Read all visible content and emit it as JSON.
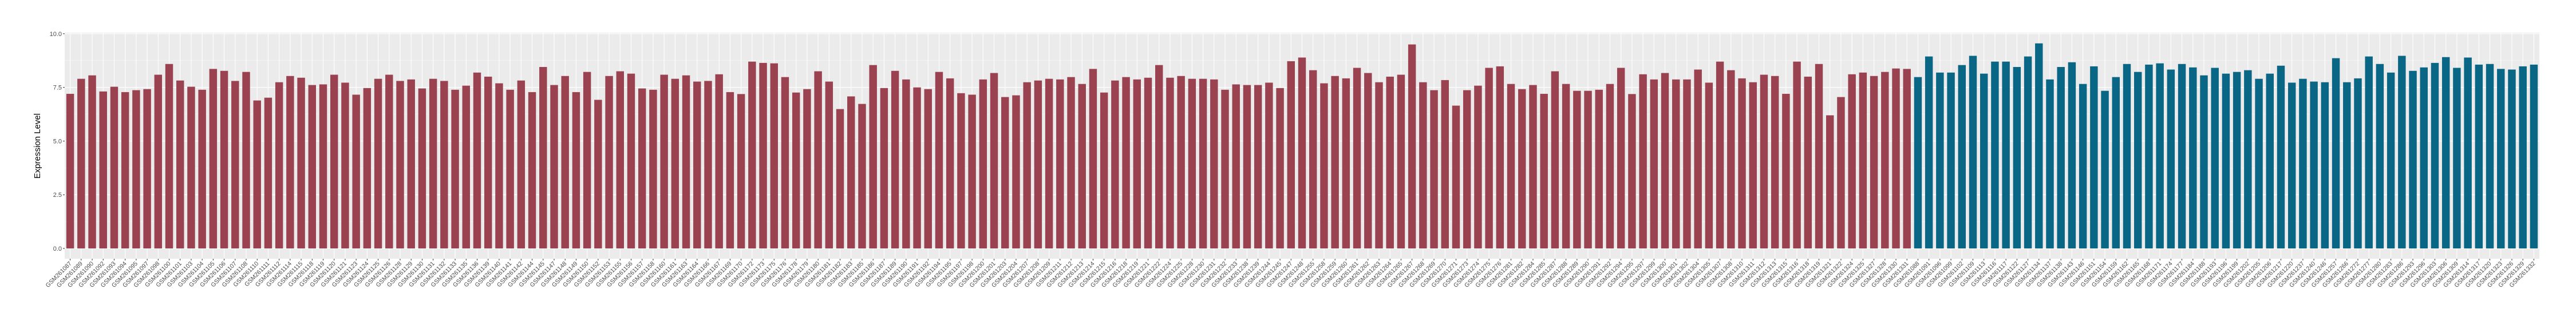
{
  "chart_data": {
    "type": "bar",
    "title": "",
    "xlabel": "",
    "ylabel": "Expression Level",
    "ylim": [
      -0.48,
      10.05
    ],
    "yticks": [
      "0.0",
      "2.5",
      "5.0",
      "7.5",
      "10.0"
    ],
    "grid": true,
    "legend": "none",
    "background": "#EBEBEB",
    "series": [
      {
        "color": "#9B4251",
        "categories": [
          "GSM261087",
          "GSM261089",
          "GSM261090",
          "GSM261092",
          "GSM261093",
          "GSM261094",
          "GSM261095",
          "GSM261097",
          "GSM261098",
          "GSM261100",
          "GSM261101",
          "GSM261103",
          "GSM261104",
          "GSM261105",
          "GSM261106",
          "GSM261107",
          "GSM261108",
          "GSM261110",
          "GSM261111",
          "GSM261112",
          "GSM261114",
          "GSM261115",
          "GSM261118",
          "GSM261119",
          "GSM261120",
          "GSM261121",
          "GSM261123",
          "GSM261124",
          "GSM261125",
          "GSM261126",
          "GSM261128",
          "GSM261129",
          "GSM261130",
          "GSM261131",
          "GSM261132",
          "GSM261133",
          "GSM261135",
          "GSM261136",
          "GSM261139",
          "GSM261140",
          "GSM261141",
          "GSM261142",
          "GSM261144",
          "GSM261145",
          "GSM261147",
          "GSM261148",
          "GSM261149",
          "GSM261150",
          "GSM261152",
          "GSM261153",
          "GSM261155",
          "GSM261156",
          "GSM261157",
          "GSM261158",
          "GSM261160",
          "GSM261161",
          "GSM261163",
          "GSM261164",
          "GSM261166",
          "GSM261167",
          "GSM261169",
          "GSM261170",
          "GSM261172",
          "GSM261173",
          "GSM261175",
          "GSM261176",
          "GSM261178",
          "GSM261179",
          "GSM261180",
          "GSM261181",
          "GSM261182",
          "GSM261183",
          "GSM261185",
          "GSM261186",
          "GSM261187",
          "GSM261189",
          "GSM261190",
          "GSM261191",
          "GSM261192",
          "GSM261194",
          "GSM261195",
          "GSM261197",
          "GSM261198",
          "GSM261200",
          "GSM261201",
          "GSM261203",
          "GSM261204",
          "GSM261207",
          "GSM261208",
          "GSM261209",
          "GSM261211",
          "GSM261212",
          "GSM261213",
          "GSM261214",
          "GSM261215",
          "GSM261216",
          "GSM261218",
          "GSM261219",
          "GSM261221",
          "GSM261222",
          "GSM261224",
          "GSM261225",
          "GSM261228",
          "GSM261230",
          "GSM261231",
          "GSM261232",
          "GSM261233",
          "GSM261238",
          "GSM261239",
          "GSM261244",
          "GSM261245",
          "GSM261247",
          "GSM261248",
          "GSM261255",
          "GSM261258",
          "GSM261259",
          "GSM261260",
          "GSM261261",
          "GSM261262",
          "GSM261263",
          "GSM261264",
          "GSM261265",
          "GSM261267",
          "GSM261268",
          "GSM261269",
          "GSM261270",
          "GSM261271",
          "GSM261273",
          "GSM261274",
          "GSM261275",
          "GSM261276",
          "GSM261281",
          "GSM261282",
          "GSM261284",
          "GSM261285",
          "GSM261287",
          "GSM261288",
          "GSM261289",
          "GSM261290",
          "GSM261291",
          "GSM261292",
          "GSM261294",
          "GSM261295",
          "GSM261297",
          "GSM261299",
          "GSM261300",
          "GSM261301",
          "GSM261302",
          "GSM261304",
          "GSM261305",
          "GSM261307",
          "GSM261308",
          "GSM261310",
          "GSM261311",
          "GSM261312",
          "GSM261313",
          "GSM261315",
          "GSM261316",
          "GSM261318",
          "GSM261319",
          "GSM261321",
          "GSM261322",
          "GSM261324",
          "GSM261325",
          "GSM261327",
          "GSM261328",
          "GSM261330",
          "GSM261331"
        ],
        "values": [
          7.2,
          7.9,
          8.06,
          7.31,
          7.53,
          7.28,
          7.37,
          7.42,
          8.09,
          8.59,
          7.82,
          7.53,
          7.39,
          8.36,
          8.27,
          7.8,
          8.22,
          6.89,
          7.02,
          7.74,
          8.03,
          7.95,
          7.61,
          7.64,
          8.09,
          7.72,
          7.16,
          7.47,
          7.9,
          8.09,
          7.8,
          7.87,
          7.45,
          7.9,
          7.8,
          7.39,
          7.58,
          8.19,
          8.0,
          7.69,
          7.39,
          7.82,
          7.28,
          8.45,
          7.61,
          8.03,
          7.28,
          8.22,
          6.92,
          8.03,
          8.25,
          8.14,
          7.45,
          7.39,
          8.09,
          7.9,
          8.06,
          7.77,
          7.8,
          8.11,
          7.28,
          7.19,
          8.7,
          8.64,
          8.62,
          7.98,
          7.26,
          7.42,
          8.25,
          7.77,
          6.49,
          7.08,
          6.73,
          8.54,
          7.47,
          8.27,
          7.87,
          7.5,
          7.42,
          8.22,
          7.92,
          7.23,
          7.16,
          7.87,
          8.17,
          7.05,
          7.13,
          7.74,
          7.82,
          7.9,
          7.87,
          7.98,
          7.66,
          8.36,
          7.26,
          7.82,
          7.98,
          7.87,
          7.95,
          8.54,
          7.95,
          8.03,
          7.9,
          7.9,
          7.87,
          7.39,
          7.64,
          7.61,
          7.61,
          7.72,
          7.47,
          8.72,
          8.89,
          8.3,
          7.69,
          8.03,
          7.92,
          8.41,
          8.17,
          7.74,
          8.0,
          8.09,
          9.5,
          7.74,
          7.37,
          7.84,
          6.65,
          7.37,
          7.58,
          8.41,
          8.48,
          7.66,
          7.42,
          7.61,
          7.2,
          8.25,
          7.66,
          7.34,
          7.34,
          7.39,
          7.66,
          8.41,
          7.19,
          8.11,
          7.87,
          8.17,
          7.87,
          7.87,
          8.33,
          7.72,
          8.7,
          8.3,
          7.92,
          7.74,
          8.09,
          8.03,
          7.2,
          8.7,
          8.0,
          8.59,
          6.2,
          7.05,
          8.11,
          8.19,
          8.03,
          8.22,
          8.38,
          8.36
        ]
      },
      {
        "color": "#0A6685",
        "categories": [
          "GSM261088",
          "GSM261091",
          "GSM261096",
          "GSM261099",
          "GSM261102",
          "GSM261109",
          "GSM261113",
          "GSM261116",
          "GSM261117",
          "GSM261122",
          "GSM261127",
          "GSM261134",
          "GSM261137",
          "GSM261138",
          "GSM261143",
          "GSM261146",
          "GSM261151",
          "GSM261154",
          "GSM261159",
          "GSM261162",
          "GSM261165",
          "GSM261168",
          "GSM261171",
          "GSM261174",
          "GSM261177",
          "GSM261184",
          "GSM261188",
          "GSM261193",
          "GSM261196",
          "GSM261199",
          "GSM261202",
          "GSM261205",
          "GSM261206",
          "GSM261217",
          "GSM261220",
          "GSM261237",
          "GSM261240",
          "GSM261246",
          "GSM261257",
          "GSM261266",
          "GSM261272",
          "GSM261277",
          "GSM261280",
          "GSM261283",
          "GSM261286",
          "GSM261293",
          "GSM261296",
          "GSM261303",
          "GSM261306",
          "GSM261309",
          "GSM261314",
          "GSM261317",
          "GSM261320",
          "GSM261323",
          "GSM261326",
          "GSM261329",
          "GSM261332"
        ],
        "values": [
          7.98,
          8.94,
          8.19,
          8.19,
          8.54,
          8.97,
          8.14,
          8.7,
          8.7,
          8.45,
          8.94,
          9.55,
          7.87,
          8.45,
          8.67,
          7.66,
          8.48,
          7.34,
          7.98,
          8.59,
          8.22,
          8.56,
          8.62,
          8.33,
          8.59,
          8.43,
          8.06,
          8.41,
          8.14,
          8.22,
          8.3,
          7.9,
          8.14,
          8.51,
          7.72,
          7.9,
          7.77,
          7.74,
          8.86,
          7.74,
          7.92,
          8.94,
          8.59,
          8.19,
          8.97,
          8.27,
          8.43,
          8.64,
          8.91,
          8.41,
          8.89,
          8.56,
          8.59,
          8.36,
          8.33,
          8.48,
          8.56
        ]
      }
    ]
  }
}
